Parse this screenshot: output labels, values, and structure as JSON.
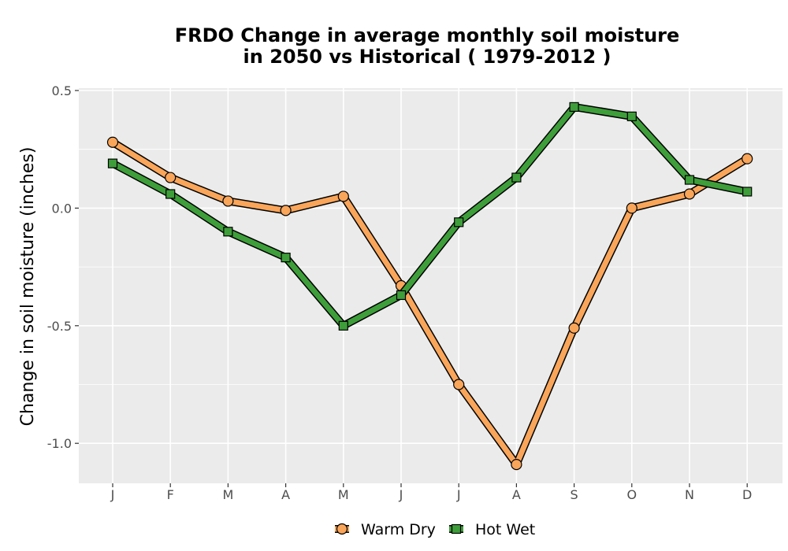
{
  "chart_data": {
    "type": "line",
    "title_lines": [
      "FRDO  Change in average monthly soil moisture",
      "in 2050 vs Historical ( 1979-2012 )"
    ],
    "xlabel": "",
    "ylabel": "Change in soil moisture (inches)",
    "categories": [
      "J",
      "F",
      "M",
      "A",
      "M",
      "J",
      "J",
      "A",
      "S",
      "O",
      "N",
      "D"
    ],
    "y_ticks": [
      0.5,
      0.0,
      -0.5,
      -1.0
    ],
    "y_tick_labels": [
      "0.5",
      "0.0",
      "-0.5",
      "-1.0"
    ],
    "ylim": [
      -1.17,
      0.51
    ],
    "grid": true,
    "legend_position": "bottom",
    "series": [
      {
        "name": "Warm Dry",
        "marker": "circle",
        "color": "#f9a55a",
        "values": [
          0.28,
          0.13,
          0.03,
          -0.01,
          0.05,
          -0.33,
          -0.75,
          -1.09,
          -0.51,
          0.0,
          0.06,
          0.21
        ]
      },
      {
        "name": "Hot Wet",
        "marker": "square",
        "color": "#3e9e3a",
        "values": [
          0.19,
          0.06,
          -0.1,
          -0.21,
          -0.5,
          -0.37,
          -0.06,
          0.13,
          0.43,
          0.39,
          0.12,
          0.07
        ]
      }
    ]
  },
  "colors": {
    "panel_background": "#ebebeb",
    "gridline": "#ffffff",
    "outline": "#000000"
  }
}
